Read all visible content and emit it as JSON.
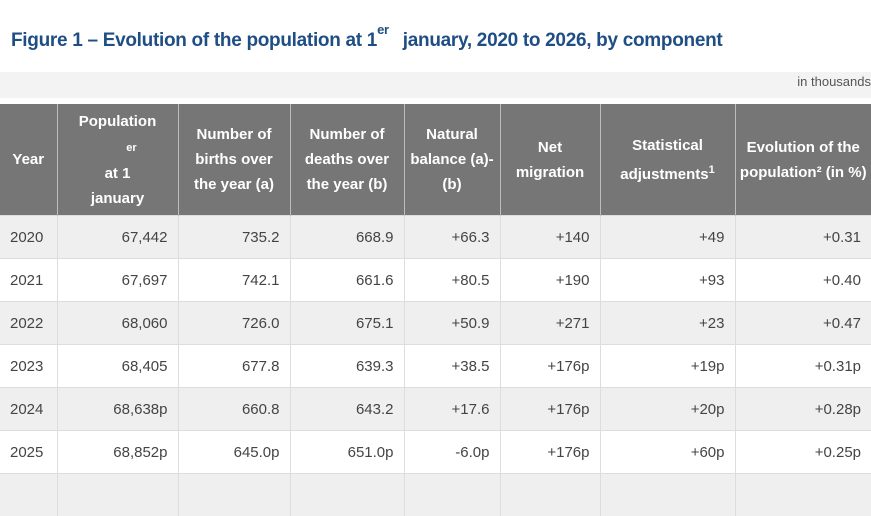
{
  "title": {
    "main": "Figure 1 – Evolution of the population at 1",
    "sup": "er",
    "rest": "january, 2020 to 2026, by component"
  },
  "unit": "in thousands",
  "columns": [
    {
      "label": "Year"
    },
    {
      "label_a": "Population",
      "sup": "er",
      "label_b": "at 1",
      "label_c": "january"
    },
    {
      "label": "Number of births over the year (a)"
    },
    {
      "label": "Number of deaths over the year (b)"
    },
    {
      "label": "Natural balance (a)-(b)"
    },
    {
      "label": "Net migration"
    },
    {
      "label": "Statistical adjustments",
      "sup": "1"
    },
    {
      "label": "Evolution of the population² (in %)"
    }
  ],
  "rows": [
    [
      "2020",
      "67,442",
      "735.2",
      "668.9",
      "+66.3",
      "+140",
      "+49",
      "+0.31"
    ],
    [
      "2021",
      "67,697",
      "742.1",
      "661.6",
      "+80.5",
      "+190",
      "+93",
      "+0.40"
    ],
    [
      "2022",
      "68,060",
      "726.0",
      "675.1",
      "+50.9",
      "+271",
      "+23",
      "+0.47"
    ],
    [
      "2023",
      "68,405",
      "677.8",
      "639.3",
      "+38.5",
      "+176p",
      "+19p",
      "+0.31p"
    ],
    [
      "2024",
      "68,638p",
      "660.8",
      "643.2",
      "+17.6",
      "+176p",
      "+20p",
      "+0.28p"
    ],
    [
      "2025",
      "68,852p",
      "645.0p",
      "651.0p",
      "-6.0p",
      "+176p",
      "+60p",
      "+0.25p"
    ]
  ]
}
